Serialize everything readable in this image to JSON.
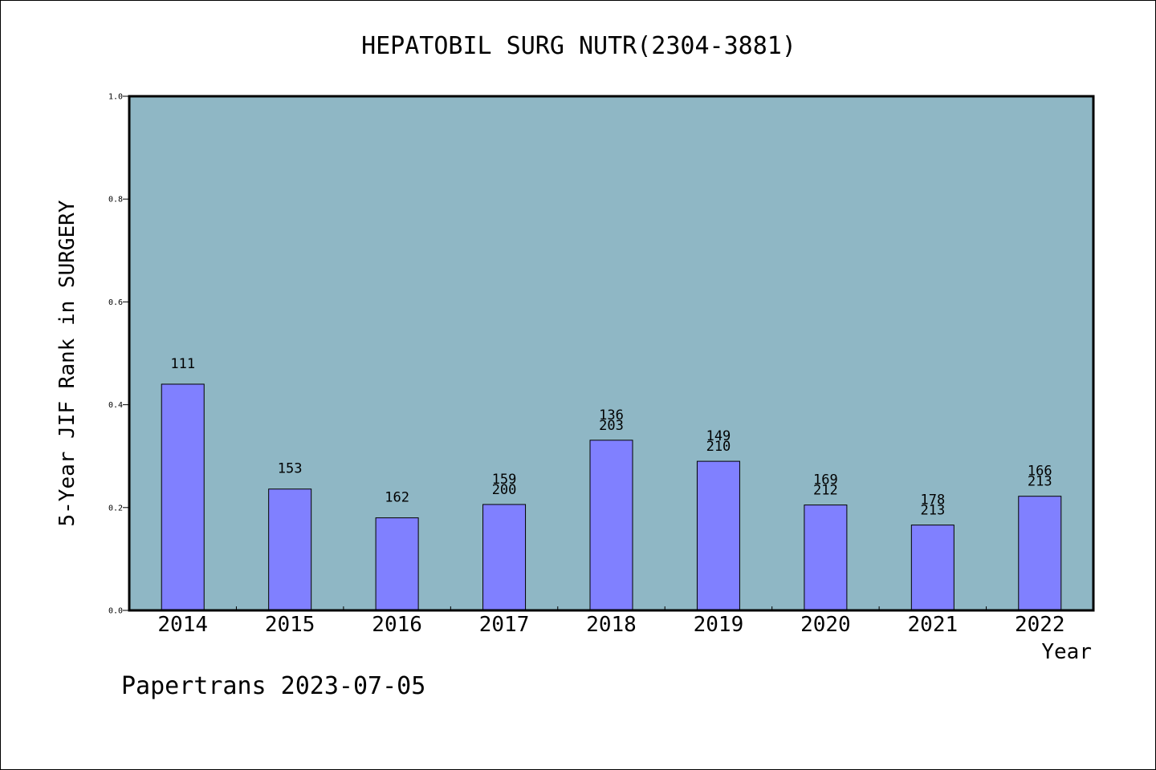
{
  "chart_data": {
    "type": "bar",
    "title": "HEPATOBIL SURG NUTR(2304-3881)",
    "xlabel": "Year",
    "ylabel": "5-Year JIF Rank in SURGERY",
    "ylim": [
      0,
      1.0
    ],
    "yticks": [
      "0.0",
      "0.2",
      "0.4",
      "0.6",
      "0.8",
      "1.0"
    ],
    "grid": false,
    "categories": [
      "2014",
      "2015",
      "2016",
      "2017",
      "2018",
      "2019",
      "2020",
      "2021",
      "2022"
    ],
    "values": [
      0.44,
      0.236,
      0.18,
      0.206,
      0.331,
      0.29,
      0.205,
      0.166,
      0.222
    ],
    "bar_labels": [
      [
        "111"
      ],
      [
        "153"
      ],
      [
        "162"
      ],
      [
        "159",
        "200"
      ],
      [
        "136",
        "203"
      ],
      [
        "149",
        "210"
      ],
      [
        "169",
        "212"
      ],
      [
        "178",
        "213"
      ],
      [
        "166",
        "213"
      ]
    ],
    "colors": {
      "plot_background": "#8fb7c5",
      "bar_fill": "#8080ff",
      "axis": "#000000"
    }
  },
  "footer": {
    "watermark": "Papertrans 2023-07-05"
  }
}
